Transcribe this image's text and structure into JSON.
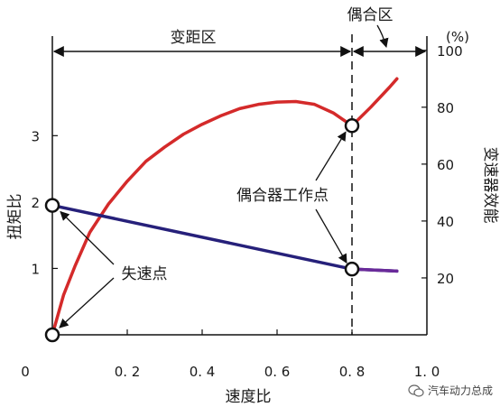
{
  "chart_data": {
    "type": "line",
    "x_label": "速度比",
    "y_left_label": "扭矩比",
    "y_right_label": "变速器效能",
    "right_unit": "(%)",
    "x_ticks": [
      "0",
      "0. 2",
      "0. 4",
      "0. 6",
      "0. 8",
      "1. 0"
    ],
    "x_tick_values": [
      0,
      0.2,
      0.4,
      0.6,
      0.8,
      1.0
    ],
    "y_left_ticks": [
      1,
      2,
      3
    ],
    "y_right_ticks": [
      20,
      40,
      60,
      80,
      100
    ],
    "xlim": [
      0,
      1.0
    ],
    "ylim_left": [
      0,
      4.5
    ],
    "ylim_right": [
      0,
      105
    ],
    "coupling_point_x": 0.8,
    "region_labels": {
      "torque_conversion": "变距区",
      "coupling": "偶合区"
    },
    "annotations": {
      "stall_point": "失速点",
      "coupling_point": "偶合器工作点"
    },
    "series": [
      {
        "axis": "right",
        "color": "#d42a2a",
        "points": [
          [
            0.0,
            0
          ],
          [
            0.03,
            14
          ],
          [
            0.06,
            24
          ],
          [
            0.1,
            36
          ],
          [
            0.15,
            46
          ],
          [
            0.2,
            54
          ],
          [
            0.25,
            61
          ],
          [
            0.3,
            66
          ],
          [
            0.35,
            70.5
          ],
          [
            0.4,
            74
          ],
          [
            0.45,
            77
          ],
          [
            0.5,
            79.5
          ],
          [
            0.55,
            81
          ],
          [
            0.6,
            81.8
          ],
          [
            0.65,
            82
          ],
          [
            0.7,
            81
          ],
          [
            0.75,
            78
          ],
          [
            0.8,
            73.5
          ],
          [
            0.85,
            80
          ],
          [
            0.9,
            87
          ],
          [
            0.92,
            90
          ]
        ]
      },
      {
        "axis": "left",
        "color": "#26207a",
        "points": [
          [
            0.0,
            1.95
          ],
          [
            0.8,
            0.99
          ],
          [
            0.92,
            0.96
          ]
        ]
      }
    ],
    "markers": [
      {
        "x": 0.0,
        "y": 0,
        "axis": "right"
      },
      {
        "x": 0.0,
        "y": 1.95,
        "axis": "left"
      },
      {
        "x": 0.8,
        "y": 73.5,
        "axis": "right"
      },
      {
        "x": 0.8,
        "y": 0.99,
        "axis": "left"
      }
    ]
  },
  "watermark": "汽车动力总成"
}
